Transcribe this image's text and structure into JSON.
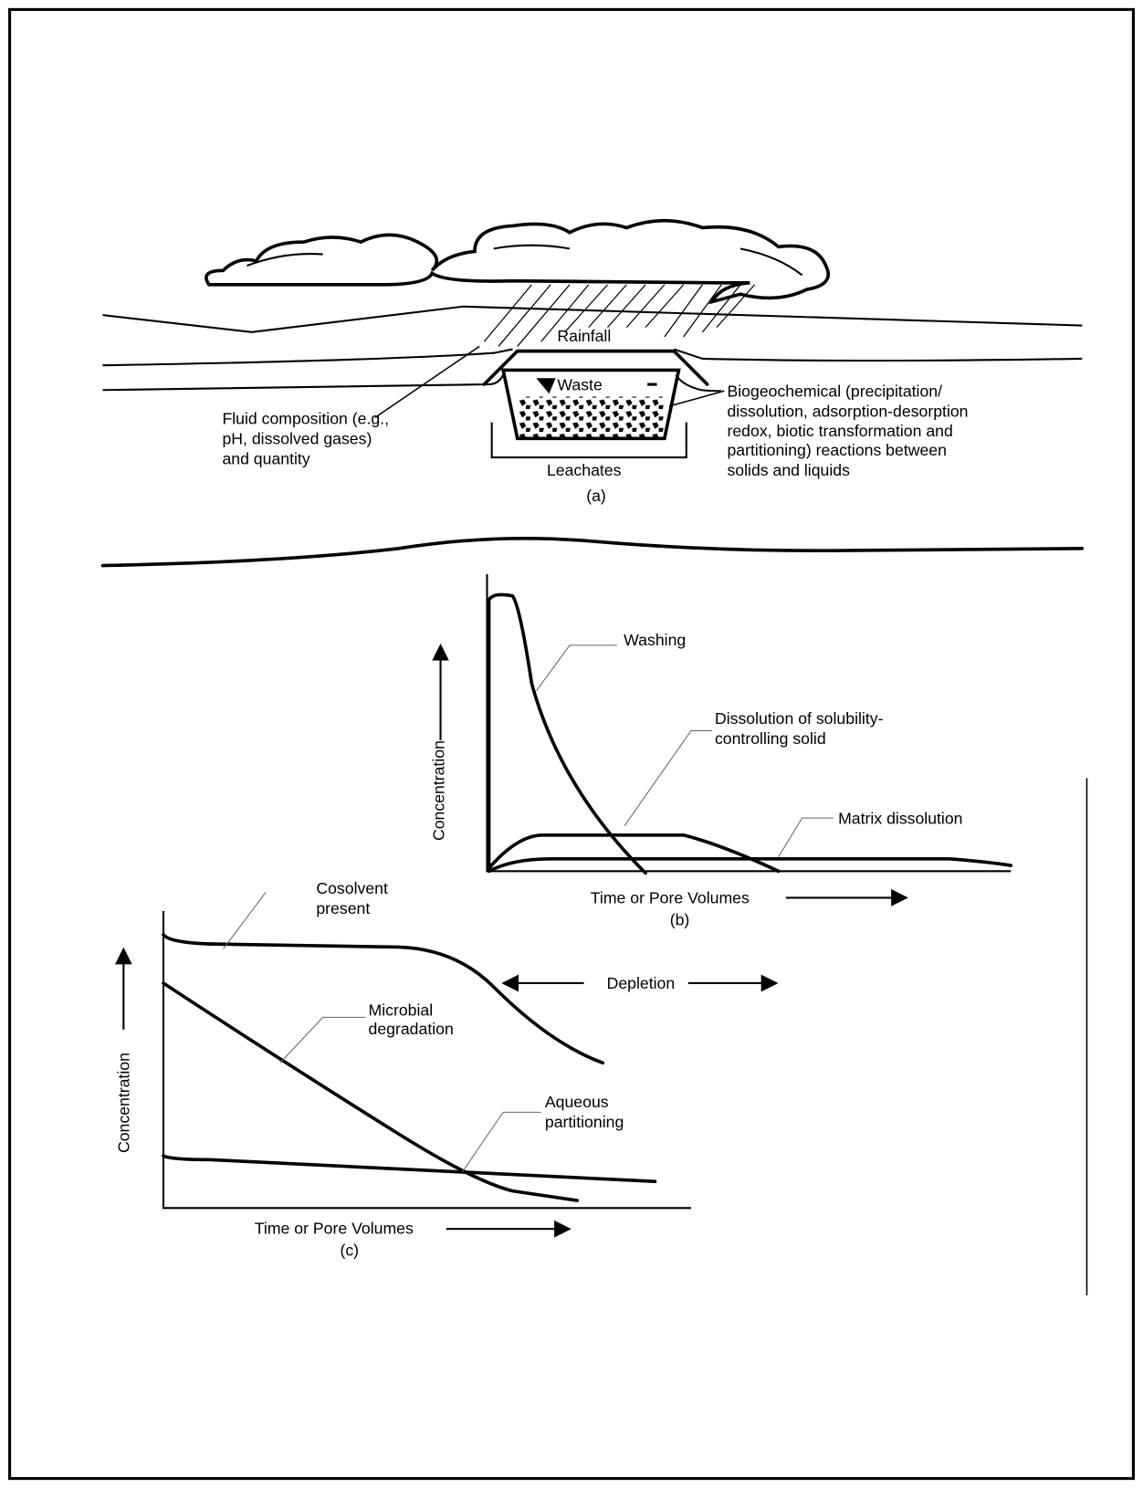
{
  "panel_a": {
    "rainfall": "Rainfall",
    "waste": "Waste",
    "leachates": "Leachates",
    "caption": "(a)",
    "fluid_note": [
      "Fluid composition (e.g.,",
      "pH, dissolved gases)",
      "and quantity"
    ],
    "reaction_note": [
      "Biogeochemical (precipitation/",
      "dissolution, adsorption-desorption",
      "redox, biotic transformation and",
      "partitioning) reactions between",
      "solids and liquids"
    ]
  },
  "panel_b": {
    "washing": "Washing",
    "dissolution": [
      "Dissolution of solubility-",
      "controlling solid"
    ],
    "matrix": "Matrix dissolution",
    "y_label": "Concentration",
    "x_label": "Time or Pore Volumes",
    "caption": "(b)"
  },
  "panel_c": {
    "cosolvent": [
      "Cosolvent",
      "present"
    ],
    "microbial": [
      "Microbial",
      "degradation"
    ],
    "aqueous": [
      "Aqueous",
      "partitioning"
    ],
    "depletion": "Depletion",
    "y_label": "Concentration",
    "x_label": "Time or Pore Volumes",
    "caption": "(c)"
  }
}
